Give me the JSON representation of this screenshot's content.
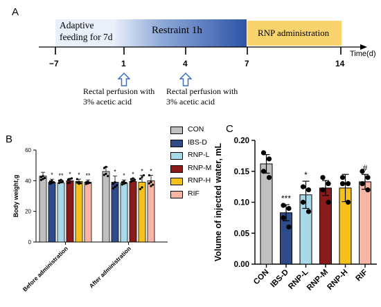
{
  "panels": {
    "a": "A",
    "b": "B",
    "c": "C"
  },
  "timeline": {
    "phase_adaptive": [
      "Adaptive",
      "feeding for 7d"
    ],
    "phase_restraint": "Restraint 1h",
    "phase_rnp": "RNP administration",
    "axis_label": "Time(d)",
    "ticks": [
      "−7",
      "1",
      "4",
      "7",
      "14"
    ],
    "note1": [
      "Rectal perfusion with",
      "3% acetic acid"
    ],
    "note2": [
      "Rectal perfusion with",
      "3% acetic acid"
    ],
    "colors": {
      "adaptive": "#eaf0fa",
      "restraint": "#2d54a8",
      "rnp": "#f9d36b"
    }
  },
  "legend": {
    "items": [
      {
        "label": "CON",
        "color": "#c0c0c0"
      },
      {
        "label": "IBS-D",
        "color": "#2f4b8a"
      },
      {
        "label": "RNP-L",
        "color": "#a9d8e8"
      },
      {
        "label": "RNP-M",
        "color": "#8b1a1a"
      },
      {
        "label": "RNP-H",
        "color": "#f5c11a"
      },
      {
        "label": "RIF",
        "color": "#f7b5a6"
      }
    ]
  },
  "chart_data": [
    {
      "type": "bar",
      "panel": "B",
      "ylabel": "Body weight,g",
      "ylim": [
        0,
        60
      ],
      "yticks": [
        0,
        20,
        40,
        60
      ],
      "groups": [
        "Before administration",
        "After administration"
      ],
      "series": [
        {
          "name": "CON",
          "values": [
            43,
            46
          ],
          "err": [
            2.5,
            3
          ]
        },
        {
          "name": "IBS-D",
          "values": [
            39,
            39
          ],
          "err": [
            2,
            4
          ]
        },
        {
          "name": "RNP-L",
          "values": [
            38.5,
            38.5
          ],
          "err": [
            2,
            2
          ]
        },
        {
          "name": "RNP-M",
          "values": [
            40,
            39.5
          ],
          "err": [
            1.5,
            2
          ]
        },
        {
          "name": "RNP-H",
          "values": [
            39.5,
            39
          ],
          "err": [
            1.5,
            4.5
          ]
        },
        {
          "name": "RIF",
          "values": [
            39,
            40
          ],
          "err": [
            1.5,
            3.5
          ]
        }
      ],
      "significance": [
        [
          "",
          "*",
          "**",
          "*",
          "*",
          "**"
        ],
        [
          "",
          "*",
          "*",
          "*",
          "*",
          "*"
        ]
      ]
    },
    {
      "type": "bar",
      "panel": "C",
      "ylabel": "Volume of injected water, mL",
      "ylim": [
        0,
        0.2
      ],
      "yticks": [
        0.0,
        0.05,
        0.1,
        0.15,
        0.2
      ],
      "ytick_labels": [
        "0.00",
        "0.05",
        "0.10",
        "0.15",
        "0.20"
      ],
      "categories": [
        "CON",
        "IBS-D",
        "RNP-L",
        "RNP-M",
        "RNP-H",
        "RIF"
      ],
      "values": [
        0.162,
        0.083,
        0.112,
        0.123,
        0.123,
        0.133
      ],
      "err": [
        0.015,
        0.013,
        0.022,
        0.012,
        0.022,
        0.012
      ],
      "points": [
        [
          0.18,
          0.17,
          0.15,
          0.14
        ],
        [
          0.095,
          0.09,
          0.075,
          0.06
        ],
        [
          0.125,
          0.12,
          0.1,
          0.085
        ],
        [
          0.14,
          0.13,
          0.12,
          0.1
        ],
        [
          0.14,
          0.13,
          0.13,
          0.1
        ],
        [
          0.15,
          0.14,
          0.13,
          0.12
        ]
      ],
      "significance": [
        "",
        "***",
        "*",
        "",
        "",
        "#"
      ]
    }
  ]
}
